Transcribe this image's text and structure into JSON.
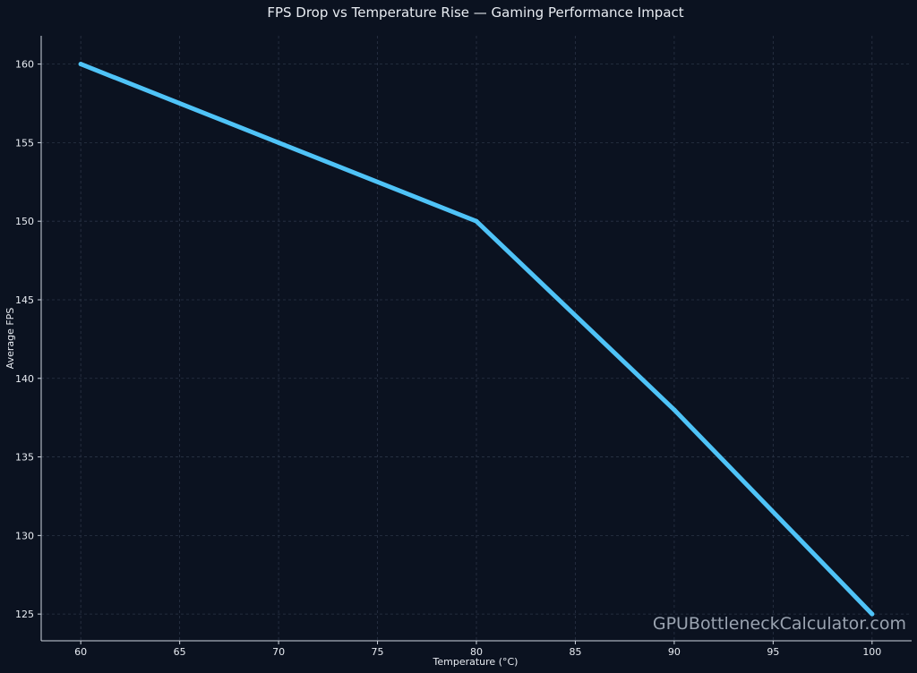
{
  "chart_data": {
    "type": "line",
    "title": "FPS Drop vs Temperature Rise — Gaming Performance Impact",
    "xlabel": "Temperature (°C)",
    "ylabel": "Average FPS",
    "xlim": [
      58,
      102
    ],
    "ylim": [
      123.3,
      161.8
    ],
    "xticks": [
      60,
      65,
      70,
      75,
      80,
      85,
      90,
      95,
      100
    ],
    "yticks": [
      125,
      130,
      135,
      140,
      145,
      150,
      155,
      160
    ],
    "grid": true,
    "series": [
      {
        "x": [
          60,
          70,
          80,
          90,
          100
        ],
        "y": [
          160,
          155,
          150,
          138,
          125
        ],
        "color": "#4fc3f7"
      }
    ]
  },
  "watermark": "GPUBottleneckCalculator.com",
  "colors": {
    "background": "#0b1220",
    "line": "#4fc3f7",
    "text": "#e8ecf2"
  }
}
